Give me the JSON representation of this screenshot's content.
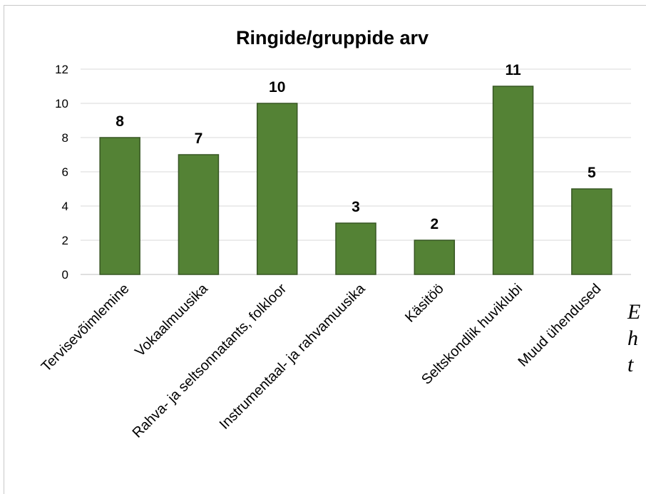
{
  "chart_data": {
    "type": "bar",
    "title": "Ringide/gruppide arv",
    "categories": [
      "Tervisevõimlemine",
      "Vokaalmuusika",
      "Rahva- ja seltsonnatants, folkloor",
      "Instrumentaal- ja rahvamuusika",
      "Käsitöö",
      "Seltskondlik huviklubi",
      "Muud ühendused"
    ],
    "series": [
      {
        "values": [
          8,
          7,
          10,
          3,
          2,
          11,
          5
        ]
      }
    ],
    "yticks": [
      "0",
      "2",
      "4",
      "6",
      "8",
      "10",
      "12"
    ],
    "ylim": [
      0,
      12
    ],
    "grid": true,
    "legend": "none",
    "colors": {
      "bar": "#548235",
      "bar_edge": "#375623",
      "grid": "#d9d9d9"
    }
  },
  "side_text": [
    "E",
    "h",
    "t"
  ]
}
